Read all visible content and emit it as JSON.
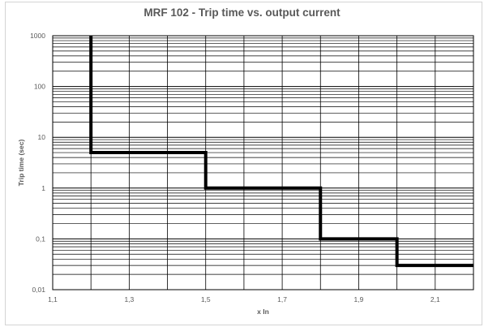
{
  "chart_data": {
    "type": "line",
    "title": "MRF 102 - Trip time vs. output current",
    "xlabel": "x In",
    "ylabel": "Trip time (sec)",
    "x_scale": "linear",
    "y_scale": "log",
    "xlim": [
      1.1,
      2.2
    ],
    "ylim": [
      0.01,
      1000
    ],
    "x_ticks": [
      1.1,
      1.3,
      1.5,
      1.7,
      1.9,
      2.1
    ],
    "x_tick_labels": [
      "1,1",
      "1,3",
      "1,5",
      "1,7",
      "1,9",
      "2,1"
    ],
    "y_ticks": [
      0.01,
      0.1,
      1,
      10,
      100,
      1000
    ],
    "y_tick_labels": [
      "0,01",
      "0,1",
      "1",
      "10",
      "100",
      "1000"
    ],
    "x_gridline_step": 0.1,
    "grid": true,
    "y_minor_grid": true,
    "legend": "none",
    "series": [
      {
        "line_color": "#000000",
        "style": "step",
        "points": [
          {
            "x": 1.2,
            "y": 1000
          },
          {
            "x": 1.2,
            "y": 5
          },
          {
            "x": 1.5,
            "y": 5
          },
          {
            "x": 1.5,
            "y": 1
          },
          {
            "x": 1.8,
            "y": 1
          },
          {
            "x": 1.8,
            "y": 0.1
          },
          {
            "x": 2.0,
            "y": 0.1
          },
          {
            "x": 2.0,
            "y": 0.03
          },
          {
            "x": 2.2,
            "y": 0.03
          }
        ]
      }
    ]
  }
}
